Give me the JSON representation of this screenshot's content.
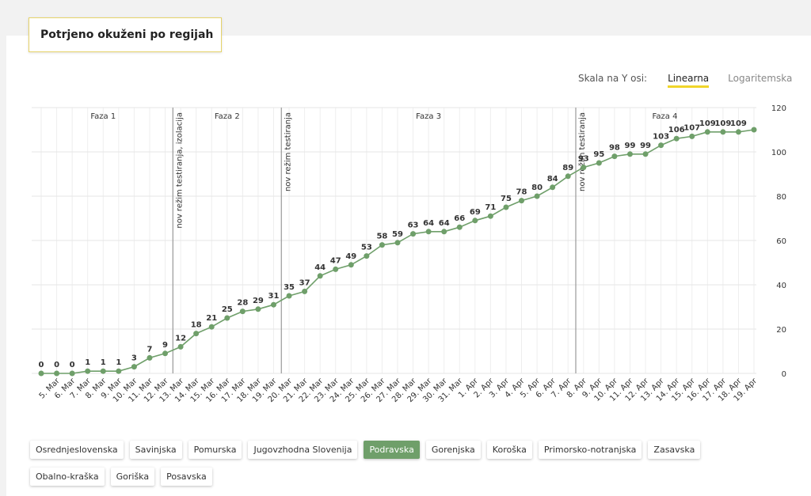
{
  "header": {
    "title": "Potrjeno okuženi po regijah"
  },
  "scale": {
    "label": "Skala na Y osi:",
    "options": [
      "Linearna",
      "Logaritemska"
    ],
    "active": 0
  },
  "regions": {
    "items": [
      "Osrednjeslovenska",
      "Savinjska",
      "Pomurska",
      "Jugovzhodna Slovenija",
      "Podravska",
      "Gorenjska",
      "Koroška",
      "Primorsko-notranjska",
      "Zasavska",
      "Obalno-kraška",
      "Goriška",
      "Posavska"
    ],
    "active": 4
  },
  "chart_data": {
    "type": "line",
    "categories": [
      null,
      "5. Mar",
      "6. Mar",
      "7. Mar",
      "8. Mar",
      "9. Mar",
      "10. Mar",
      "11. Mar",
      "12. Mar",
      "13. Mar",
      "14. Mar",
      "15. Mar",
      "16. Mar",
      "17. Mar",
      "18. Mar",
      "19. Mar",
      "20. Mar",
      "21. Mar",
      "22. Mar",
      "23. Mar",
      "24. Mar",
      "25. Mar",
      "26. Mar",
      "27. Mar",
      "28. Mar",
      "29. Mar",
      "30. Mar",
      "31. Mar",
      "1. Apr",
      "2. Apr",
      "3. Apr",
      "4. Apr",
      "5. Apr",
      "6. Apr",
      "7. Apr",
      "8. Apr",
      "9. Apr",
      "10. Apr",
      "11. Apr",
      "12. Apr",
      "13. Apr",
      "14. Apr",
      "15. Apr",
      "16. Apr",
      "17. Apr",
      "18. Apr",
      "19. Apr"
    ],
    "series": [
      {
        "name": "Podravska",
        "color": "#6f9f6a",
        "values": [
          0,
          0,
          0,
          1,
          1,
          1,
          3,
          7,
          9,
          12,
          18,
          21,
          25,
          28,
          29,
          31,
          35,
          37,
          44,
          47,
          49,
          53,
          58,
          59,
          63,
          64,
          64,
          66,
          69,
          71,
          75,
          78,
          80,
          84,
          89,
          93,
          95,
          98,
          99,
          99,
          103,
          106,
          107,
          109,
          109,
          109,
          110
        ],
        "value_labels": [
          "0",
          "0",
          "0",
          "1",
          "1",
          "1",
          "3",
          "7",
          "9",
          "12",
          "18",
          "21",
          "25",
          "28",
          "29",
          "31",
          "35",
          "37",
          "44",
          "47",
          "49",
          "53",
          "58",
          "59",
          "63",
          "64",
          "64",
          "66",
          "69",
          "71",
          "75",
          "78",
          "80",
          "84",
          "89",
          "93",
          "95",
          "98",
          "99",
          "99",
          "103",
          "106",
          "107",
          "109",
          "109",
          "109",
          null
        ]
      }
    ],
    "ylim": [
      0,
      120
    ],
    "yticks": [
      0,
      20,
      40,
      60,
      80,
      100,
      120
    ],
    "grid": true,
    "phases": [
      "Faza 1",
      "Faza 2",
      "Faza 3",
      "Faza 4"
    ],
    "annotations": [
      {
        "after": 8,
        "label": "nov režim testiranja, izolacija"
      },
      {
        "after": 15,
        "label": "nov režim testiranja"
      },
      {
        "after": 34,
        "label": "nov režim testiranja"
      }
    ]
  }
}
